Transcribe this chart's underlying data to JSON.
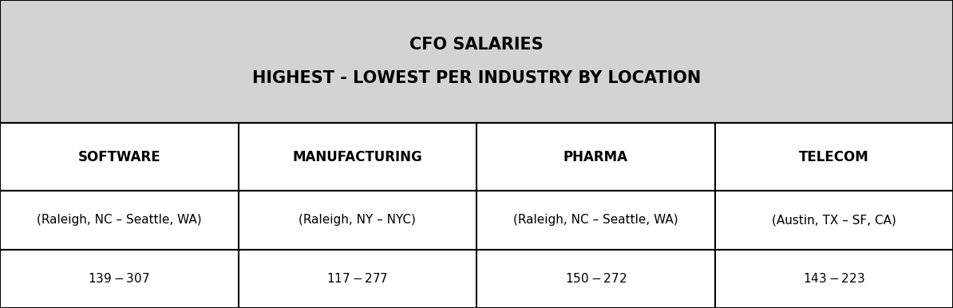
{
  "title_line1": "CFO SALARIES",
  "title_line2": "HIGHEST - LOWEST PER INDUSTRY BY LOCATION",
  "header_bg": "#d3d3d3",
  "table_bg": "#ffffff",
  "outer_bg": "#ffffff",
  "border_color": "#000000",
  "columns": [
    "SOFTWARE",
    "MANUFACTURING",
    "PHARMA",
    "TELECOM"
  ],
  "locations": [
    "(Raleigh, NC – Seattle, WA)",
    "(Raleigh, NY – NYC)",
    "(Raleigh, NC – Seattle, WA)",
    "(Austin, TX – SF, CA)"
  ],
  "salaries": [
    "$139 - $307",
    "$117 - $277",
    "$150 - $272",
    "$143 - $223"
  ],
  "title_fontsize": 15,
  "header_fontsize": 12,
  "cell_fontsize": 11,
  "fig_width": 11.94,
  "fig_height": 3.86,
  "dpi": 100
}
